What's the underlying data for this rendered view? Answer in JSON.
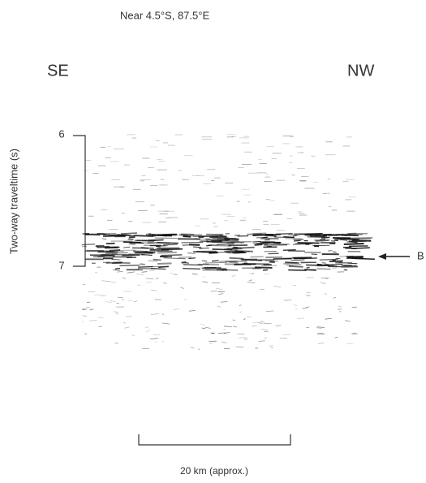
{
  "header": {
    "title": "Near 4.5°S, 87.5°E",
    "left_label": "SE",
    "right_label": "NW"
  },
  "axis": {
    "label": "Two-way traveltime (s)",
    "ticks": [
      6,
      7
    ]
  },
  "annotation": {
    "label": "B"
  },
  "scale_bar": {
    "label": "20 km (approx.)"
  }
}
